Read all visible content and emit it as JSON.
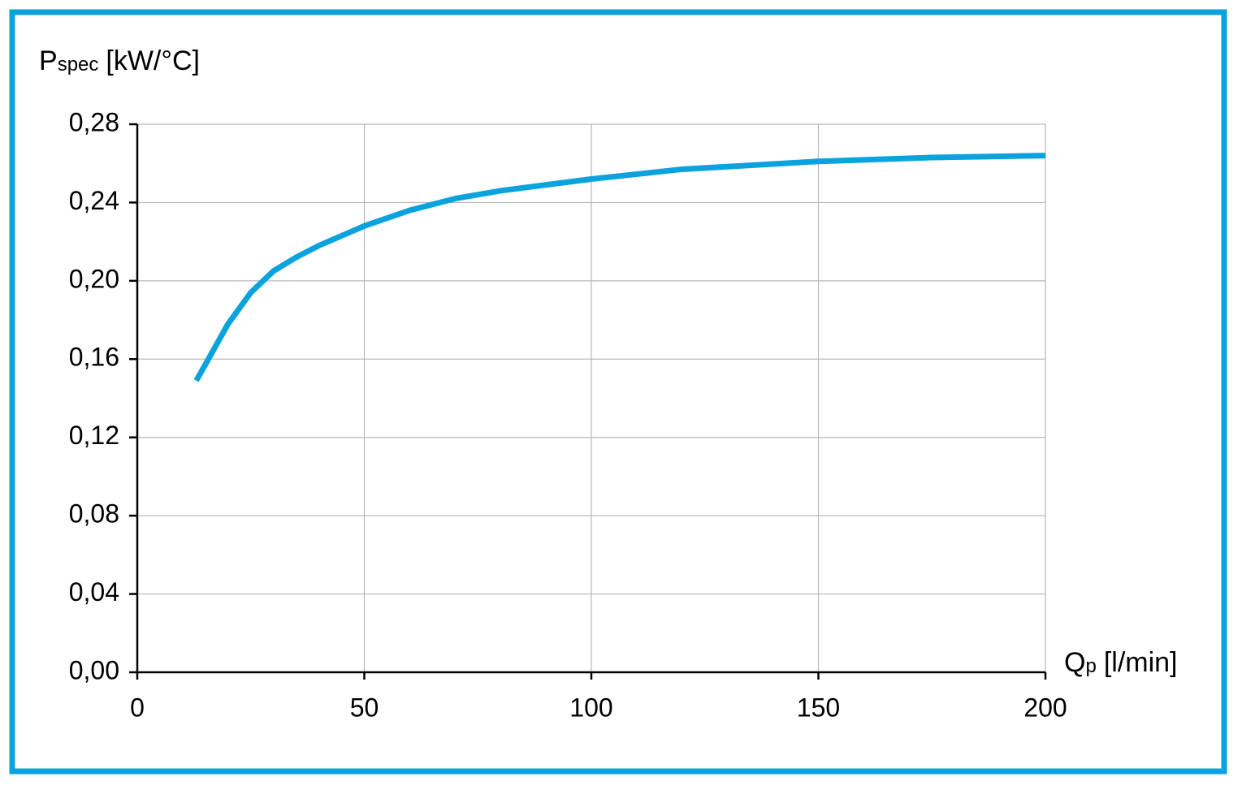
{
  "chart_data": {
    "type": "line",
    "ylabel": "P",
    "ylabel_sub": "spec",
    "ylabel_unit": "[kW/°C]",
    "xlabel": "Q",
    "xlabel_sub": "p",
    "xlabel_unit": "[l/min]",
    "x": [
      13,
      20,
      25,
      30,
      35,
      40,
      50,
      60,
      70,
      80,
      100,
      120,
      150,
      175,
      200
    ],
    "series": [
      {
        "color": "#0ba3de",
        "values": [
          0.149,
          0.178,
          0.194,
          0.205,
          0.212,
          0.218,
          0.228,
          0.236,
          0.242,
          0.246,
          0.252,
          0.257,
          0.261,
          0.263,
          0.264
        ]
      }
    ],
    "xlim": [
      0,
      200
    ],
    "xticks": [
      0,
      50,
      100,
      150,
      200
    ],
    "ylim": [
      0,
      0.28
    ],
    "yticks": [
      {
        "value": 0,
        "label": "0,00"
      },
      {
        "value": 0.04,
        "label": "0,04"
      },
      {
        "value": 0.08,
        "label": "0,08"
      },
      {
        "value": 0.12,
        "label": "0,12"
      },
      {
        "value": 0.16,
        "label": "0,16"
      },
      {
        "value": 0.2,
        "label": "0,20"
      },
      {
        "value": 0.24,
        "label": "0,24"
      },
      {
        "value": 0.28,
        "label": "0,28"
      }
    ],
    "grid": true
  }
}
